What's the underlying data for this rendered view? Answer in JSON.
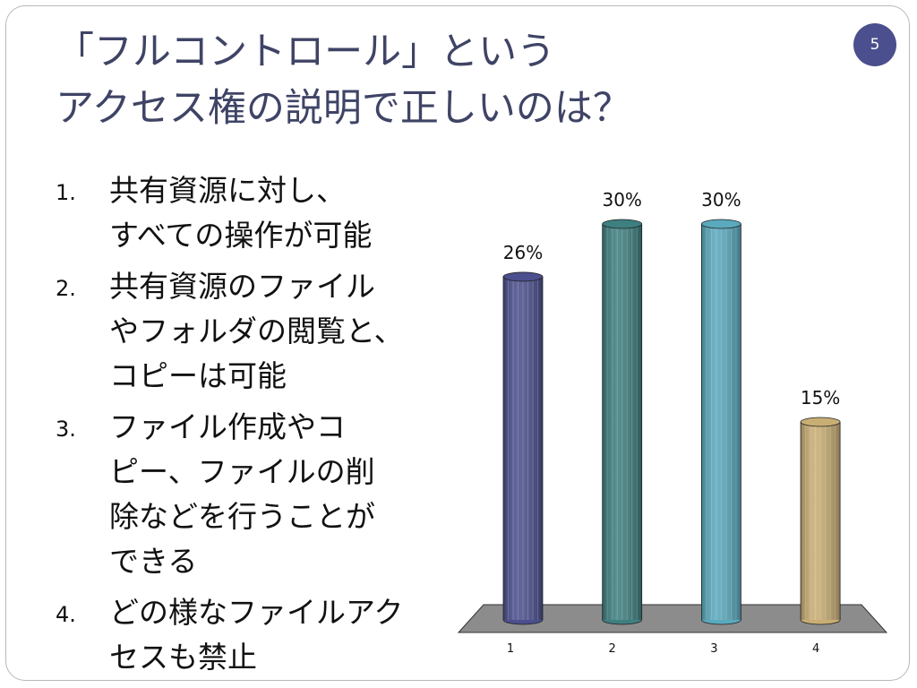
{
  "slide": {
    "title": [
      "「フルコントロール」という",
      "アクセス権の説明で正しいのは？"
    ],
    "page_number": "5",
    "items": [
      {
        "number": "1.",
        "lines": [
          "共有資源に対し、",
          "すべての操作が可能"
        ]
      },
      {
        "number": "2.",
        "lines": [
          "共有資源のファイル",
          "やフォルダの閲覧と、",
          "コピーは可能"
        ]
      },
      {
        "number": "3.",
        "lines": [
          "ファイル作成やコ",
          "ピー、ファイルの削",
          "除などを行うことが",
          "できる"
        ]
      },
      {
        "number": "4.",
        "lines": [
          "どの様なファイルアク",
          "セスも禁止"
        ]
      }
    ]
  },
  "chart_data": {
    "type": "bar",
    "categories": [
      "1",
      "2",
      "3",
      "4"
    ],
    "values": [
      26,
      30,
      30,
      15
    ],
    "value_labels": [
      "26%",
      "30%",
      "30%",
      "15%"
    ],
    "colors": [
      "#4b4f8e",
      "#3e7f80",
      "#5aa9bd",
      "#c9ae74"
    ]
  }
}
